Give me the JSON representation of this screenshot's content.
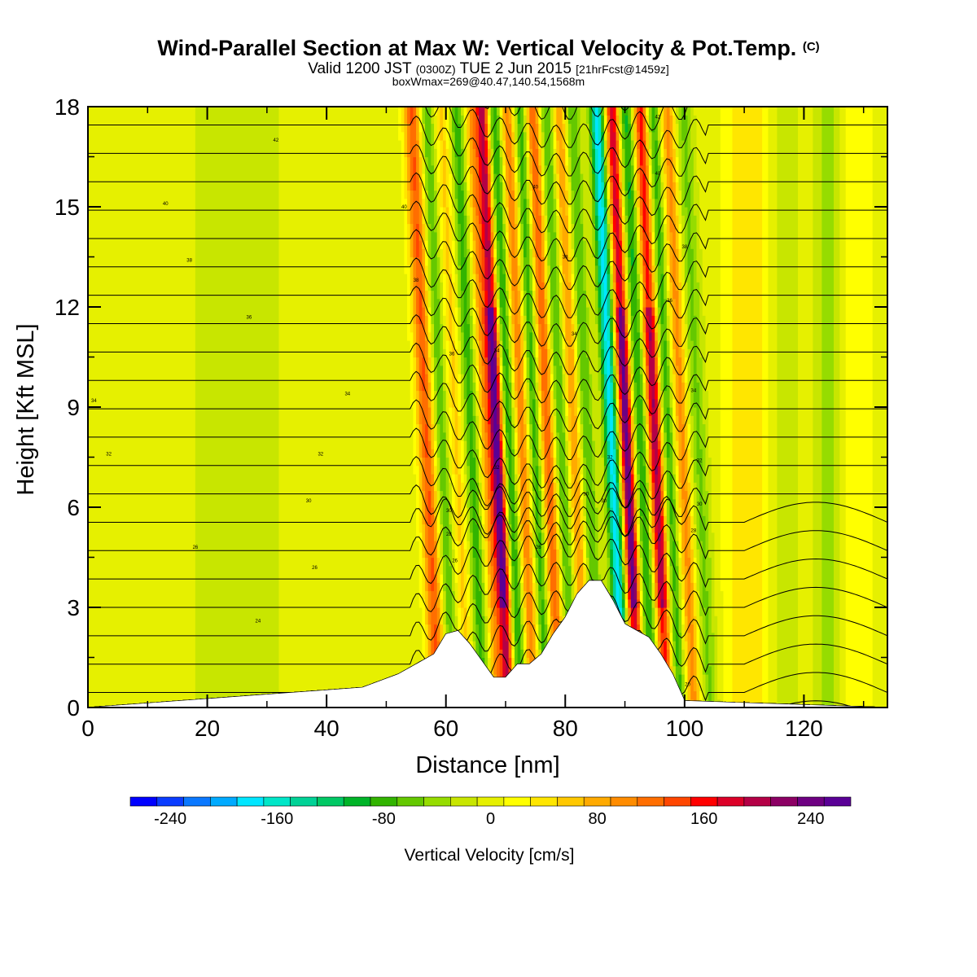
{
  "header": {
    "title": "Wind-Parallel Section at Max W: Vertical Velocity & Pot.Temp.",
    "title_mark": "(C)",
    "valid_prefix": "Valid 1200 JST",
    "valid_utc": "(0300Z)",
    "valid_date": "TUE 2 Jun 2015",
    "valid_fcst": "[21hrFcst@1459z]",
    "boxwmax": "boxWmax=269@40.47,140.54,1568m"
  },
  "chart_data": {
    "type": "heatmap",
    "xlabel": "Distance [nm]",
    "ylabel": "Height [Kft MSL]",
    "xlim": [
      0,
      134
    ],
    "ylim": [
      0,
      18
    ],
    "x_ticks": [
      "0",
      "20",
      "40",
      "60",
      "80",
      "100",
      "120"
    ],
    "y_ticks": [
      "0",
      "3",
      "6",
      "9",
      "12",
      "15",
      "18"
    ],
    "colorbar": {
      "title": "Vertical Velocity [cm/s]",
      "min": -270,
      "max": 270,
      "step": 20,
      "labels": [
        "-240",
        "-160",
        "-80",
        "0",
        "80",
        "160",
        "240"
      ],
      "colors": [
        "#0000ff",
        "#0a3cff",
        "#0a78ff",
        "#00aaff",
        "#00e6ff",
        "#00e6c8",
        "#00d296",
        "#00c864",
        "#00b428",
        "#32b400",
        "#64c800",
        "#96dc00",
        "#c8e600",
        "#e6f000",
        "#ffff00",
        "#ffe600",
        "#ffc800",
        "#ffaa00",
        "#ff8c00",
        "#ff6e00",
        "#ff4600",
        "#ff0000",
        "#dc0028",
        "#b40046",
        "#8c0064",
        "#6e0082",
        "#5a0096"
      ]
    },
    "terrain": {
      "x": [
        0,
        46,
        52,
        55,
        58,
        60,
        62,
        64,
        66,
        68,
        70,
        72,
        74,
        76,
        78,
        80,
        82,
        84,
        86,
        88,
        90,
        92,
        94,
        96,
        98,
        100,
        134
      ],
      "height": [
        0,
        0.6,
        1.0,
        1.3,
        1.6,
        2.2,
        2.3,
        1.9,
        1.4,
        0.9,
        0.9,
        1.3,
        1.3,
        1.6,
        2.2,
        2.7,
        3.4,
        3.8,
        3.8,
        3.2,
        2.5,
        2.3,
        2.1,
        1.6,
        1.0,
        0.2,
        0
      ]
    },
    "vertical_velocity_bands": [
      {
        "x": 56.5,
        "w": 132,
        "halfwidth": 1.4
      },
      {
        "x": 59.0,
        "w": -70,
        "halfwidth": 1.2
      },
      {
        "x": 61.5,
        "w": 55,
        "halfwidth": 1.2
      },
      {
        "x": 64.0,
        "w": -80,
        "halfwidth": 1.2
      },
      {
        "x": 66.5,
        "w": 90,
        "halfwidth": 1.1
      },
      {
        "x": 68.3,
        "w": 269,
        "halfwidth": 1.1
      },
      {
        "x": 70.3,
        "w": -95,
        "halfwidth": 1.2
      },
      {
        "x": 72.5,
        "w": 110,
        "halfwidth": 1.2
      },
      {
        "x": 74.6,
        "w": -85,
        "halfwidth": 1.1
      },
      {
        "x": 76.8,
        "w": 130,
        "halfwidth": 1.2
      },
      {
        "x": 79.0,
        "w": -75,
        "halfwidth": 1.2
      },
      {
        "x": 81.2,
        "w": 95,
        "halfwidth": 1.1
      },
      {
        "x": 83.4,
        "w": -70,
        "halfwidth": 1.2
      },
      {
        "x": 87.5,
        "w": -180,
        "halfwidth": 1.2
      },
      {
        "x": 90.0,
        "w": 255,
        "halfwidth": 1.1
      },
      {
        "x": 92.4,
        "w": -95,
        "halfwidth": 1.2
      },
      {
        "x": 94.8,
        "w": 215,
        "halfwidth": 1.2
      },
      {
        "x": 97.0,
        "w": -85,
        "halfwidth": 1.2
      },
      {
        "x": 99.3,
        "w": 100,
        "halfwidth": 1.3
      },
      {
        "x": 102.0,
        "w": -55,
        "halfwidth": 1.5
      },
      {
        "x": 110.5,
        "w": 50,
        "halfwidth": 3.5
      },
      {
        "x": 117.0,
        "w": -20,
        "halfwidth": 2.5
      },
      {
        "x": 124.0,
        "w": -40,
        "halfwidth": 2.0
      },
      {
        "x": 129.0,
        "w": 30,
        "halfwidth": 2.5
      },
      {
        "x": 22.0,
        "w": -25,
        "halfwidth": 4.0
      },
      {
        "x": 30.0,
        "w": -15,
        "halfwidth": 3.0
      },
      {
        "x": 5.0,
        "w": -10,
        "halfwidth": 4.0
      }
    ],
    "potential_temperature": {
      "units": "C",
      "min": 10,
      "max": 43,
      "step": 1
    },
    "isotherm_labels": [
      {
        "x": 31.5,
        "y": 17.0,
        "text": "42"
      },
      {
        "x": 13.0,
        "y": 15.1,
        "text": "40"
      },
      {
        "x": 53.0,
        "y": 15.0,
        "text": "40"
      },
      {
        "x": 75.0,
        "y": 15.6,
        "text": "40"
      },
      {
        "x": 95.5,
        "y": 17.7,
        "text": "42"
      },
      {
        "x": 95.5,
        "y": 16.0,
        "text": "40"
      },
      {
        "x": 17.0,
        "y": 13.4,
        "text": "38"
      },
      {
        "x": 55.0,
        "y": 12.8,
        "text": "38"
      },
      {
        "x": 80.0,
        "y": 13.5,
        "text": "38"
      },
      {
        "x": 100.0,
        "y": 13.8,
        "text": "38"
      },
      {
        "x": 27.0,
        "y": 11.7,
        "text": "36"
      },
      {
        "x": 61.0,
        "y": 10.6,
        "text": "36"
      },
      {
        "x": 68.5,
        "y": 10.7,
        "text": "34"
      },
      {
        "x": 81.5,
        "y": 11.2,
        "text": "34"
      },
      {
        "x": 97.5,
        "y": 12.2,
        "text": "36"
      },
      {
        "x": 1.0,
        "y": 9.2,
        "text": "34"
      },
      {
        "x": 43.5,
        "y": 9.4,
        "text": "34"
      },
      {
        "x": 101.5,
        "y": 9.5,
        "text": "34"
      },
      {
        "x": 3.5,
        "y": 7.6,
        "text": "32"
      },
      {
        "x": 39.0,
        "y": 7.6,
        "text": "32"
      },
      {
        "x": 68.5,
        "y": 7.2,
        "text": "32"
      },
      {
        "x": 87.5,
        "y": 7.5,
        "text": "32"
      },
      {
        "x": 102.5,
        "y": 7.4,
        "text": "32"
      },
      {
        "x": 37.0,
        "y": 6.2,
        "text": "30"
      },
      {
        "x": 83.5,
        "y": 6.4,
        "text": "30"
      },
      {
        "x": 86.5,
        "y": 6.2,
        "text": "30"
      },
      {
        "x": 60.5,
        "y": 5.9,
        "text": "30"
      },
      {
        "x": 102.5,
        "y": 6.1,
        "text": "30"
      },
      {
        "x": 60.5,
        "y": 5.2,
        "text": "28"
      },
      {
        "x": 101.5,
        "y": 5.3,
        "text": "28"
      },
      {
        "x": 18.0,
        "y": 4.8,
        "text": "26"
      },
      {
        "x": 61.5,
        "y": 4.4,
        "text": "26"
      },
      {
        "x": 75.5,
        "y": 4.8,
        "text": "26"
      },
      {
        "x": 38.0,
        "y": 4.2,
        "text": "26"
      },
      {
        "x": 28.5,
        "y": 2.6,
        "text": "24"
      },
      {
        "x": 100.5,
        "y": 0.7,
        "text": "20"
      }
    ]
  }
}
